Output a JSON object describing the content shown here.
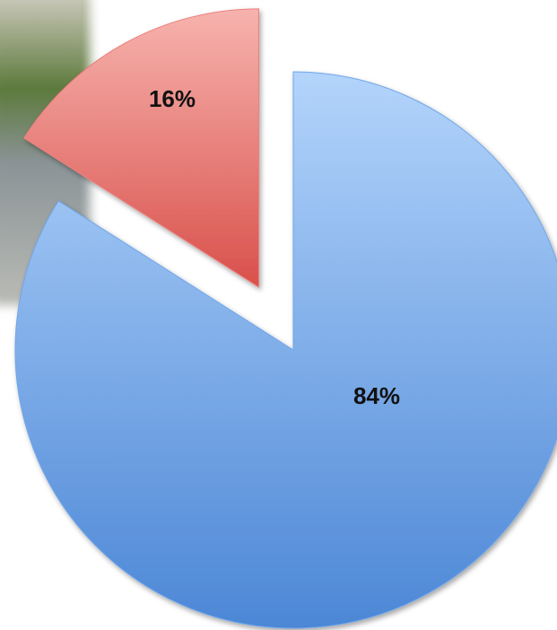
{
  "chart_data": {
    "type": "pie",
    "values": [
      84,
      16
    ],
    "value_labels": [
      "84%",
      "16%"
    ],
    "colors": [
      "#6fa6ea",
      "#ec7f7a"
    ]
  }
}
